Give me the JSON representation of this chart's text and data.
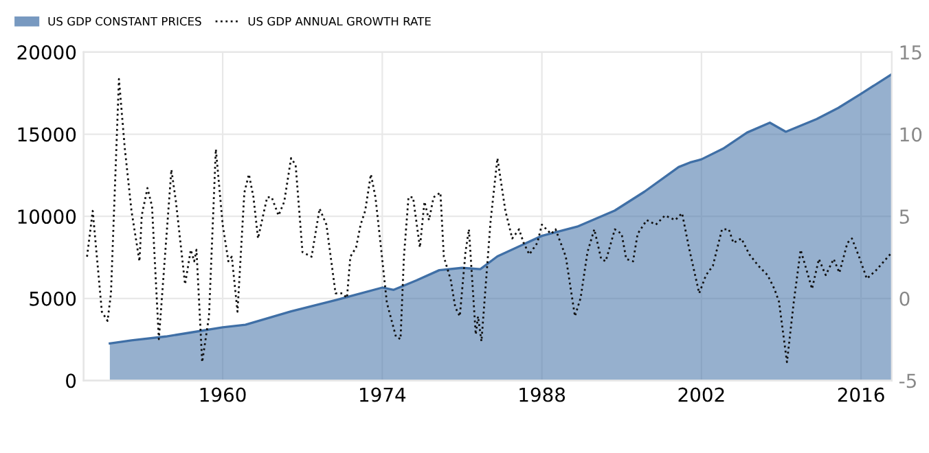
{
  "chart_data": {
    "type": "area",
    "xlim": [
      1947.8,
      2018.7
    ],
    "xticks": [
      1960,
      1974,
      1988,
      2002,
      2016
    ],
    "ylim": [
      0,
      20000
    ],
    "yticks": [
      0,
      5000,
      10000,
      15000,
      20000
    ],
    "y2lim": [
      -5,
      15
    ],
    "y2ticks": [
      -5,
      0,
      5,
      10,
      15
    ],
    "grid": true,
    "legend": "top left",
    "series": [
      {
        "name": "US GDP CONSTANT PRICES",
        "color": "#3f6fa6",
        "x": [
          1950.1,
          1952,
          1955,
          1957,
          1960,
          1962,
          1966,
          1970,
          1974,
          1975,
          1977,
          1979,
          1981,
          1982.6,
          1984.1,
          1988,
          1991.1,
          1994.4,
          1997,
          2000,
          2001,
          2002,
          2003.9,
          2006,
          2008,
          2009.4,
          2012.1,
          2014,
          2016,
          2018.7
        ],
        "values": [
          2260,
          2450,
          2680,
          2900,
          3240,
          3400,
          4210,
          4910,
          5660,
          5520,
          6100,
          6720,
          6860,
          6780,
          7560,
          8810,
          9370,
          10350,
          11500,
          13000,
          13280,
          13470,
          14120,
          15100,
          15700,
          15150,
          15920,
          16600,
          17460,
          18660
        ]
      },
      {
        "name": "US GDP ANNUAL GROWTH RATE",
        "type": "line",
        "axis": "y2",
        "color": "#111111",
        "line_style": "dotted",
        "x": [
          1948.1,
          1948.6,
          1949.4,
          1949.9,
          1950.2,
          1950.9,
          1951.4,
          1952.0,
          1952.7,
          1952.9,
          1953.4,
          1953.8,
          1954.4,
          1955.5,
          1955.9,
          1956.7,
          1957.2,
          1957.5,
          1957.7,
          1958.2,
          1958.8,
          1959.4,
          1960.0,
          1960.5,
          1960.8,
          1961.3,
          1961.9,
          1962.3,
          1962.7,
          1963.1,
          1963.9,
          1964.3,
          1964.9,
          1965.4,
          1966.0,
          1966.4,
          1967.0,
          1967.8,
          1968.5,
          1969.1,
          1969.9,
          1970.5,
          1970.9,
          1971.2,
          1971.7,
          1972.1,
          1972.5,
          1973.0,
          1973.4,
          1973.8,
          1974.4,
          1975.2,
          1975.6,
          1975.9,
          1976.3,
          1976.7,
          1977.3,
          1977.7,
          1978.1,
          1978.5,
          1979.1,
          1979.4,
          1980.0,
          1980.4,
          1980.8,
          1981.3,
          1981.6,
          1982.2,
          1982.4,
          1982.7,
          1983.5,
          1984.1,
          1984.8,
          1985.4,
          1986.0,
          1986.4,
          1986.9,
          1987.6,
          1988.0,
          1988.8,
          1989.2,
          1989.8,
          1990.1,
          1990.9,
          1991.4,
          1992.0,
          1992.6,
          1993.2,
          1993.6,
          1994.4,
          1995.0,
          1995.4,
          1996.0,
          1996.4,
          1997.2,
          1998.0,
          1998.8,
          1999.7,
          2000.3,
          2000.9,
          2001.8,
          2002.4,
          2003.0,
          2003.8,
          2004.4,
          2004.8,
          2005.5,
          2006.2,
          2007.0,
          2007.8,
          2008.4,
          2008.8,
          2009.5,
          2010.1,
          2010.7,
          2011.7,
          2012.3,
          2012.9,
          2013.6,
          2014.1,
          2014.8,
          2015.2,
          2015.9,
          2016.5,
          2017.3,
          2018.7
        ],
        "values": [
          2.54,
          5.33,
          -0.81,
          -1.37,
          0.31,
          13.36,
          9.23,
          5.33,
          2.26,
          5.05,
          6.72,
          5.61,
          -2.48,
          7.84,
          5.89,
          0.86,
          2.96,
          2.26,
          2.96,
          -3.88,
          -1.09,
          9.09,
          4.49,
          2.26,
          2.54,
          -0.81,
          6.44,
          7.56,
          6.16,
          3.65,
          6.16,
          6.16,
          5.05,
          5.89,
          8.54,
          8.12,
          2.82,
          2.54,
          5.47,
          4.49,
          0.31,
          0.31,
          0.03,
          2.54,
          3.1,
          4.49,
          5.33,
          7.56,
          6.16,
          3.65,
          -0.25,
          -2.34,
          -2.48,
          2.54,
          6.16,
          6.16,
          3.1,
          5.89,
          4.77,
          6.16,
          6.44,
          2.54,
          1.14,
          -0.53,
          -1.09,
          2.82,
          4.21,
          -2.2,
          -1.09,
          -2.62,
          4.7,
          8.54,
          5.33,
          3.65,
          4.21,
          3.38,
          2.68,
          3.38,
          4.49,
          3.93,
          4.21,
          3.1,
          2.54,
          -1.09,
          0.03,
          2.82,
          4.21,
          2.4,
          2.26,
          4.21,
          3.93,
          2.4,
          2.26,
          3.93,
          4.77,
          4.49,
          5.05,
          4.77,
          5.19,
          3.1,
          0.31,
          1.42,
          1.98,
          4.21,
          4.21,
          3.38,
          3.65,
          2.68,
          1.98,
          1.42,
          0.58,
          -0.2,
          -3.88,
          -0.2,
          2.96,
          0.58,
          2.4,
          1.42,
          2.4,
          1.56,
          3.38,
          3.65,
          2.4,
          1.2,
          1.7,
          2.8
        ]
      }
    ]
  }
}
